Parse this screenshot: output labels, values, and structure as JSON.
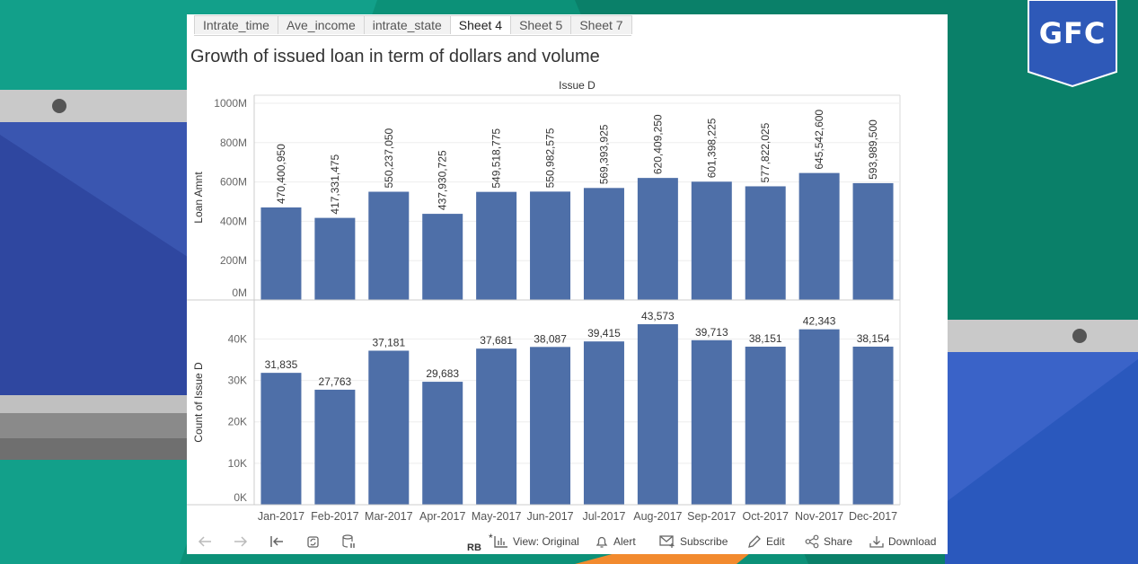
{
  "brand": {
    "badge_text": "GFC",
    "badge_color": "#2e59b8"
  },
  "tabs": [
    {
      "label": "Intrate_time",
      "active": false
    },
    {
      "label": "Ave_income",
      "active": false
    },
    {
      "label": "intrate_state",
      "active": false
    },
    {
      "label": "Sheet 4",
      "active": true
    },
    {
      "label": "Sheet 5",
      "active": false
    },
    {
      "label": "Sheet 7",
      "active": false
    }
  ],
  "sheet_title": "Growth of issued loan in term of dollars and volume",
  "toolbar": {
    "rb": "RB",
    "star": "*",
    "view_label": "View: Original",
    "alert_label": "Alert",
    "subscribe_label": "Subscribe",
    "edit_label": "Edit",
    "share_label": "Share",
    "download_label": "Download"
  },
  "chart_data": {
    "type": "bar",
    "column_header": "Issue D",
    "bar_color": "#4e6fa8",
    "categories": [
      "Jan-2017",
      "Feb-2017",
      "Mar-2017",
      "Apr-2017",
      "May-2017",
      "Jun-2017",
      "Jul-2017",
      "Aug-2017",
      "Sep-2017",
      "Oct-2017",
      "Nov-2017",
      "Dec-2017"
    ],
    "panes": [
      {
        "ylabel": "Loan Amnt",
        "ylim": [
          0,
          1000000000
        ],
        "ticks": [
          {
            "value": 0,
            "label": "0M"
          },
          {
            "value": 200000000,
            "label": "200M"
          },
          {
            "value": 400000000,
            "label": "400M"
          },
          {
            "value": 600000000,
            "label": "600M"
          },
          {
            "value": 800000000,
            "label": "800M"
          },
          {
            "value": 1000000000,
            "label": "1000M"
          }
        ],
        "values": [
          470400950,
          417331475,
          550237050,
          437930725,
          549518775,
          550982575,
          569393925,
          620409250,
          601398225,
          577822025,
          645542600,
          593989500
        ],
        "value_labels": [
          "470,400,950",
          "417,331,475",
          "550,237,050",
          "437,930,725",
          "549,518,775",
          "550,982,575",
          "569,393,925",
          "620,409,250",
          "601,398,225",
          "577,822,025",
          "645,542,600",
          "593,989,500"
        ],
        "label_orientation": "vertical"
      },
      {
        "ylabel": "Count of Issue D",
        "ylim": [
          0,
          43573
        ],
        "ticks": [
          {
            "value": 0,
            "label": "0K"
          },
          {
            "value": 10000,
            "label": "10K"
          },
          {
            "value": 20000,
            "label": "20K"
          },
          {
            "value": 30000,
            "label": "30K"
          },
          {
            "value": 40000,
            "label": "40K"
          }
        ],
        "values": [
          31835,
          27763,
          37181,
          29683,
          37681,
          38087,
          39415,
          43573,
          39713,
          38151,
          42343,
          38154
        ],
        "value_labels": [
          "31,835",
          "27,763",
          "37,181",
          "29,683",
          "37,681",
          "38,087",
          "39,415",
          "43,573",
          "39,713",
          "38,151",
          "42,343",
          "38,154"
        ],
        "label_orientation": "horizontal"
      }
    ]
  }
}
